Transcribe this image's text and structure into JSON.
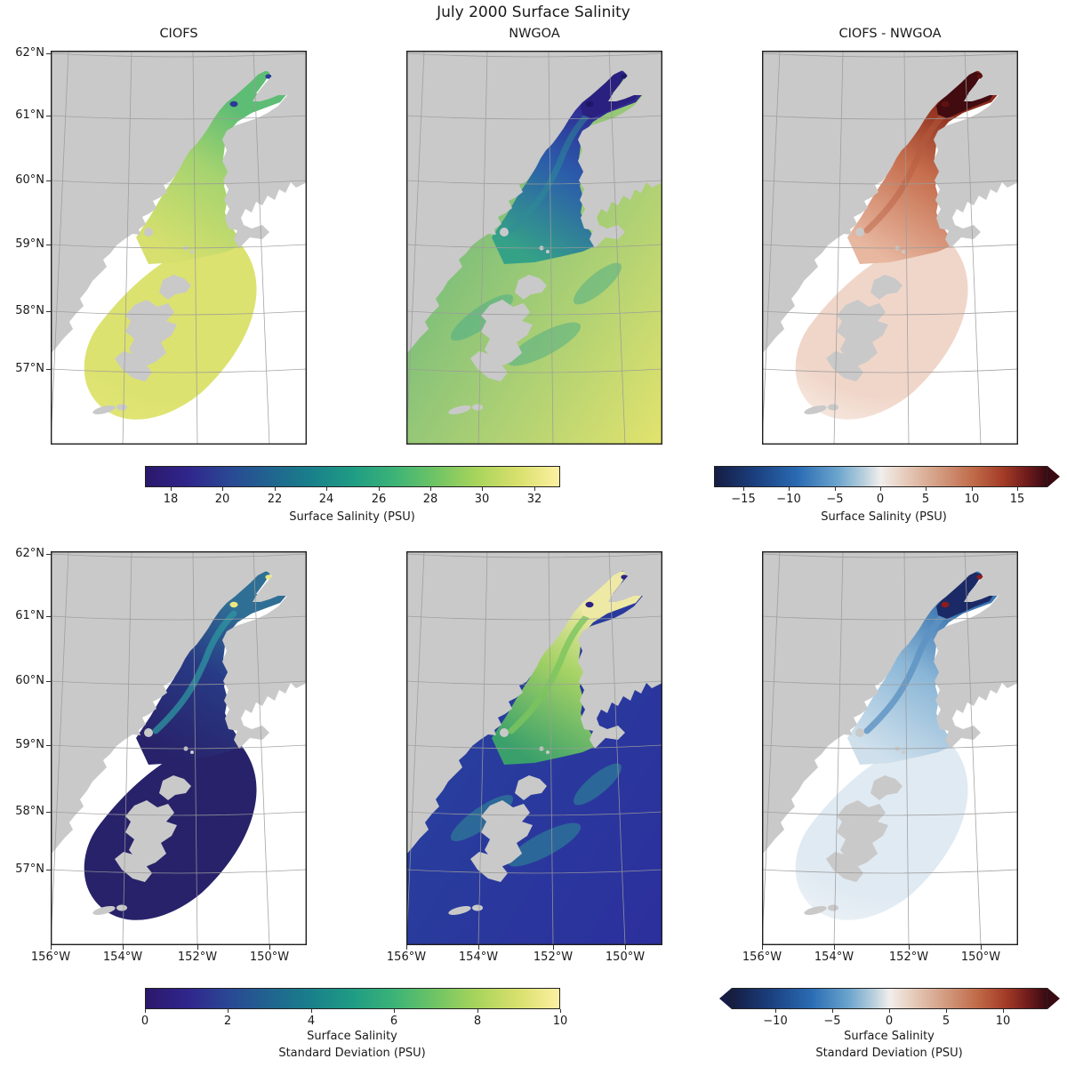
{
  "figure": {
    "title": "July 2000 Surface Salinity"
  },
  "axes": {
    "lat_ticks": [
      "62°N",
      "61°N",
      "60°N",
      "59°N",
      "58°N",
      "57°N"
    ],
    "lon_ticks": [
      "156°W",
      "154°W",
      "152°W",
      "150°W"
    ]
  },
  "colorbars": [
    {
      "label": "Surface Salinity (PSU)",
      "ticks": [
        "18",
        "20",
        "22",
        "24",
        "26",
        "28",
        "30",
        "32"
      ],
      "colormap": "haline",
      "extend": "none"
    },
    {
      "label": "Surface Salinity (PSU)",
      "ticks": [
        "−15",
        "−10",
        "−5",
        "0",
        "5",
        "10",
        "15"
      ],
      "colormap": "balance",
      "extend": "max"
    },
    {
      "label_line1": "Surface Salinity",
      "label_line2": "Standard Deviation (PSU)",
      "ticks": [
        "0",
        "2",
        "4",
        "6",
        "8",
        "10"
      ],
      "colormap": "haline",
      "extend": "none"
    },
    {
      "label_line1": "Surface Salinity",
      "label_line2": "Standard Deviation (PSU)",
      "ticks": [
        "−10",
        "−5",
        "0",
        "5",
        "10"
      ],
      "colormap": "balance",
      "extend": "both"
    }
  ],
  "chart_data": {
    "type": "heatmap",
    "title": "July 2000 Surface Salinity",
    "geography": "Cook Inlet and northwestern Gulf of Alaska (Kodiak Island region), Lambert-conformal style map panels",
    "grid": "on",
    "lat_ticks_deg_n": [
      62,
      61,
      60,
      59,
      58,
      57
    ],
    "lon_ticks_deg_w": [
      156,
      154,
      152,
      150
    ],
    "land_color": "#c9c9c9",
    "panels": [
      {
        "row": 0,
        "col": 0,
        "title": "CIOFS",
        "quantity": "mean surface salinity",
        "units": "PSU",
        "colormap": "haline",
        "vmin": 17,
        "vmax": 33,
        "pattern": "Fan-shaped CIOFS model domain ~31-32 PSU (yellow-green); upper inlet fresher ~26-28 (green); small ~18-20 (dark blue) spots at river arm tips; white outside domain",
        "palette": {
          "ocean_a": "#ffffff",
          "ocean_b": "#ffffff",
          "fan_c": "#dce26f",
          "fan_e": "#e2e677",
          "chan_low": "#d7e06e",
          "chan_mid": "#a6d36f",
          "chan_high": "#5dbd74",
          "arm_patch": "transparent",
          "arm_dots": "#2c3a96",
          "swirl": "transparent",
          "swirl_o": "0",
          "streak": "transparent",
          "streak_o": "0"
        }
      },
      {
        "row": 0,
        "col": 1,
        "title": "NWGOA",
        "quantity": "mean surface salinity",
        "units": "PSU",
        "colormap": "haline",
        "vmin": 17,
        "vmax": 33,
        "pattern": "Gulf of Alaska ~31-32 PSU (yellow); mid Cook Inlet 24-28 (teal/green); upper inlet <18 (dark indigo)",
        "palette": {
          "ocean_a": "#e2e36d",
          "ocean_b": "#5fb47e",
          "fan_c": "transparent",
          "fan_e": "transparent",
          "chan_low": "#35a287",
          "chan_mid": "#2b5cab",
          "chan_high": "#2f2a92",
          "arm_patch": "#2a2080",
          "arm_dots": "#1d1766",
          "swirl": "#3fa98a",
          "swirl_o": "0.45",
          "streak": "#2e8b96",
          "streak_o": "0.5"
        }
      },
      {
        "row": 0,
        "col": 2,
        "title": "CIOFS - NWGOA",
        "quantity": "surface salinity difference",
        "units": "PSU",
        "colormap": "balance",
        "vmin": -18,
        "vmax": 18,
        "pattern": "Mostly positive (CIOFS saltier): pale pink over outer fan, +5 to +10 (red) mid inlet, > +15 (dark maroon) in upper inlet; pixelated coarse grid",
        "palette": {
          "ocean_a": "#ffffff",
          "ocean_b": "#ffffff",
          "fan_c": "#f0d6c9",
          "fan_e": "#f9efe9",
          "chan_low": "#e7b7a0",
          "chan_mid": "#c66f4e",
          "chan_high": "#8c2c1b",
          "arm_patch": "#420b10",
          "arm_dots": "#5e130f",
          "swirl": "transparent",
          "swirl_o": "0",
          "streak": "#b65a3e",
          "streak_o": "0.45"
        }
      },
      {
        "row": 1,
        "col": 0,
        "title": "CIOFS",
        "quantity": "surface salinity standard deviation",
        "units": "PSU",
        "colormap": "haline",
        "vmin": 0,
        "vmax": 10,
        "pattern": "Near 0-1 (dark navy) over nearly the whole domain; 2-6 (blue/teal) streaks in the channel; ~10 (yellow) spots at river mouths",
        "palette": {
          "ocean_a": "#ffffff",
          "ocean_b": "#ffffff",
          "fan_c": "#28226a",
          "fan_e": "#28226a",
          "chan_low": "#28226a",
          "chan_mid": "#283a85",
          "chan_high": "#2f6f95",
          "arm_patch": "transparent",
          "arm_dots": "#ece87f",
          "swirl": "transparent",
          "swirl_o": "0",
          "streak": "#2d96a0",
          "streak_o": "0.75"
        }
      },
      {
        "row": 1,
        "col": 1,
        "title": "NWGOA",
        "quantity": "surface salinity standard deviation",
        "units": "PSU",
        "colormap": "haline",
        "vmin": 0,
        "vmax": 10,
        "pattern": "1-3 (blue) gulf with teal eddy filaments; 4-7 (green) mid inlet; ~9-10 (pale yellow) upper inlet and arms",
        "palette": {
          "ocean_a": "#2c2f9d",
          "ocean_b": "#27439d",
          "fan_c": "transparent",
          "fan_e": "transparent",
          "chan_low": "#3aa06b",
          "chan_mid": "#a3d164",
          "chan_high": "#efe9a6",
          "arm_patch": "#efe9a6",
          "arm_dots": "#2b2384",
          "swirl": "#2f8f96",
          "swirl_o": "0.55",
          "streak": "#7cc45f",
          "streak_o": "0.8"
        }
      },
      {
        "row": 1,
        "col": 2,
        "title": "CIOFS - NWGOA",
        "quantity": "standard deviation difference",
        "units": "PSU",
        "colormap": "balance",
        "vmin": -14,
        "vmax": 14,
        "pattern": "Mostly weakly negative (pale blue); -5 to -10 (blue) streaks mid inlet; ~ -12 (dark navy) patch in upper inlet; tiny positive (dark red) spot at arm tip",
        "palette": {
          "ocean_a": "#ffffff",
          "ocean_b": "#ffffff",
          "fan_c": "#e0eaf2",
          "fan_e": "#eff4f8",
          "chan_low": "#cfe0ec",
          "chan_mid": "#8ab6d7",
          "chan_high": "#3c76b0",
          "arm_patch": "#1b2a66",
          "arm_dots": "#8c1d1d",
          "swirl": "transparent",
          "swirl_o": "0",
          "streak": "#5d92c2",
          "streak_o": "0.8"
        }
      }
    ],
    "colorbars": [
      {
        "row": 0,
        "applies_to": [
          "CIOFS",
          "NWGOA"
        ],
        "label": "Surface Salinity (PSU)",
        "colormap": "haline",
        "range": [
          17,
          33
        ],
        "tick_values": [
          18,
          20,
          22,
          24,
          26,
          28,
          30,
          32
        ],
        "extend": "none"
      },
      {
        "row": 0,
        "applies_to": [
          "CIOFS - NWGOA"
        ],
        "label": "Surface Salinity (PSU)",
        "colormap": "balance",
        "range": [
          -18,
          18
        ],
        "tick_values": [
          -15,
          -10,
          -5,
          0,
          5,
          10,
          15
        ],
        "extend": "max"
      },
      {
        "row": 1,
        "applies_to": [
          "CIOFS",
          "NWGOA"
        ],
        "label": "Surface Salinity Standard Deviation (PSU)",
        "colormap": "haline",
        "range": [
          0,
          10
        ],
        "tick_values": [
          0,
          2,
          4,
          6,
          8,
          10
        ],
        "extend": "none"
      },
      {
        "row": 1,
        "applies_to": [
          "CIOFS - NWGOA"
        ],
        "label": "Surface Salinity Standard Deviation (PSU)",
        "colormap": "balance",
        "range": [
          -14,
          14
        ],
        "tick_values": [
          -10,
          -5,
          0,
          5,
          10
        ],
        "extend": "both"
      }
    ]
  }
}
